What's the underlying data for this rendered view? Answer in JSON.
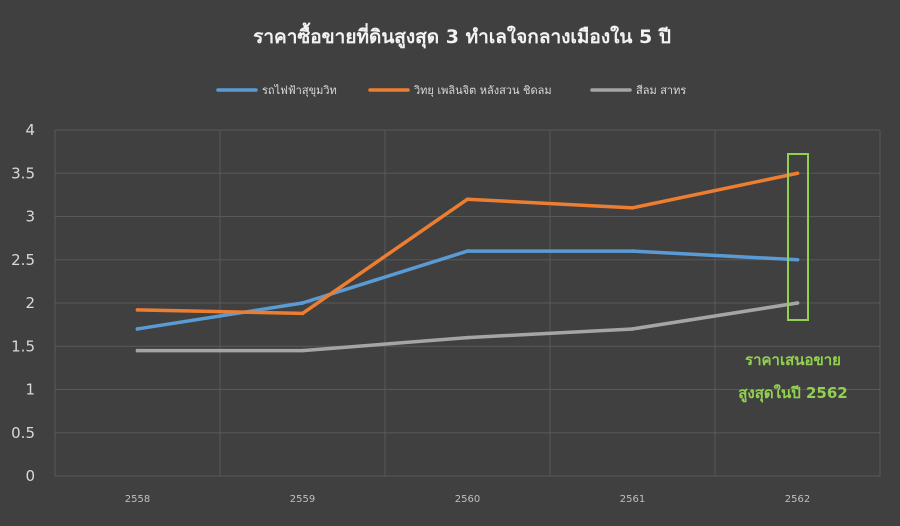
{
  "chart_data": {
    "type": "line",
    "title": "ราคาซื้อขายที่ดินสูงสุด 3 ทำเลใจกลางเมืองใน 5 ปี",
    "xlabel": "",
    "ylabel": "",
    "categories": [
      "2558",
      "2559",
      "2560",
      "2561",
      "2562"
    ],
    "ylim": [
      0,
      4
    ],
    "yticks": [
      "0",
      "0.5",
      "1",
      "1.5",
      "2",
      "2.5",
      "3",
      "3.5",
      "4"
    ],
    "grid": true,
    "legend_position": "top",
    "series": [
      {
        "name": "รถไฟฟ้าสุขุมวิท",
        "color": "#5b9bd5",
        "values": [
          1.7,
          2.0,
          2.6,
          2.6,
          2.5
        ]
      },
      {
        "name": "วิทยุ เพลินจิต หลังสวน ชิดลม",
        "color": "#ed7d31",
        "values": [
          1.92,
          1.88,
          3.2,
          3.1,
          3.5
        ]
      },
      {
        "name": "สีลม สาทร",
        "color": "#a5a5a5",
        "values": [
          1.45,
          1.45,
          1.6,
          1.7,
          2.0
        ]
      }
    ],
    "annotation": {
      "line1": "ราคาเสนอขาย",
      "line2": "สูงสุดในปี 2562",
      "color": "#92d050"
    }
  }
}
